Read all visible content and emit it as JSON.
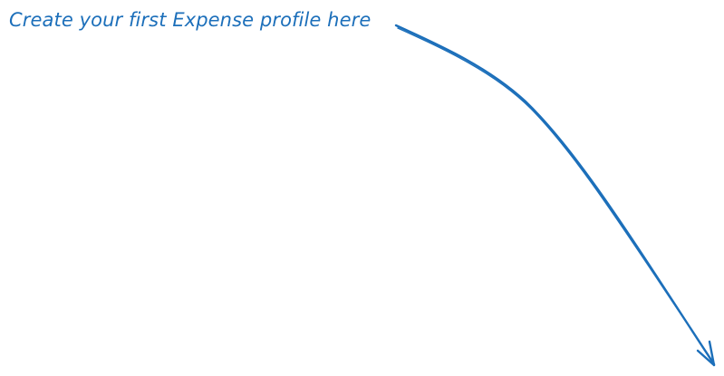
{
  "hint": {
    "text": "Create your first Expense profile here",
    "color": "#1c6fba"
  },
  "arrow": {
    "icon": "hand-drawn-arrow-icon",
    "color": "#1c6fba"
  }
}
